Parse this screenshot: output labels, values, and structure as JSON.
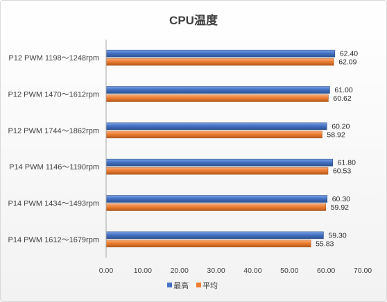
{
  "chart_data": {
    "type": "bar",
    "orientation": "horizontal",
    "title": "CPU温度",
    "categories": [
      "P12 PWM 1198～1248rpm",
      "P12 PWM 1470～1612rpm",
      "P12 PWM 1744～1862rpm",
      "P14 PWM 1146～1190rpm",
      "P14 PWM 1434～1493rpm",
      "P14 PWM 1612～1679rpm"
    ],
    "series": [
      {
        "name": "最高",
        "color": "#4472c4",
        "values": [
          62.4,
          61.0,
          60.2,
          61.8,
          60.3,
          59.3
        ]
      },
      {
        "name": "平均",
        "color": "#ed7d31",
        "values": [
          62.09,
          60.62,
          58.92,
          60.53,
          59.92,
          55.83
        ]
      }
    ],
    "xlim": [
      0,
      70
    ],
    "xticks": [
      "0.00",
      "10.00",
      "20.00",
      "30.00",
      "40.00",
      "50.00",
      "60.00",
      "70.00"
    ],
    "grid": false,
    "legend_position": "bottom"
  }
}
